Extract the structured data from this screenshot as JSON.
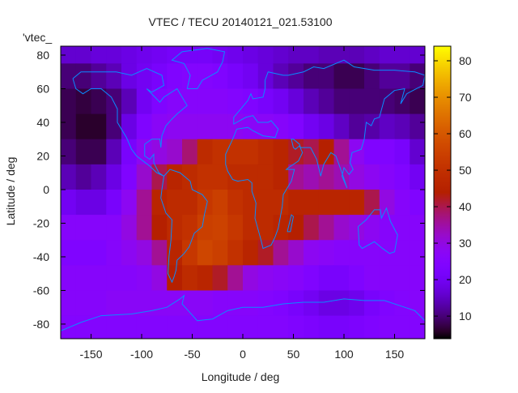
{
  "chart_data": {
    "type": "heatmap",
    "title": "VTEC / TECU 20140121_021.53100",
    "xlabel": "Longitude / deg",
    "ylabel": "Latitude / deg",
    "key_label": "'vtec_",
    "xlim": [
      -180,
      180
    ],
    "ylim": [
      -88.7,
      85.3
    ],
    "xticks": [
      -150,
      -100,
      -50,
      0,
      50,
      100,
      150
    ],
    "yticks": [
      -80,
      -60,
      -40,
      -20,
      0,
      20,
      40,
      60,
      80
    ],
    "colorbar": {
      "range": [
        3.8,
        84
      ],
      "ticks": [
        10,
        20,
        30,
        40,
        50,
        60,
        70,
        80
      ],
      "palette": "black-purple-red-orange-yellow"
    },
    "grid": false,
    "cell_size_deg": 15,
    "lon_centers": [
      -172.5,
      -157.5,
      -142.5,
      -127.5,
      -112.5,
      -97.5,
      -82.5,
      -67.5,
      -52.5,
      -37.5,
      -22.5,
      -7.5,
      7.5,
      22.5,
      37.5,
      52.5,
      67.5,
      82.5,
      97.5,
      112.5,
      127.5,
      142.5,
      157.5,
      172.5
    ],
    "lat_centers": [
      82.5,
      67.5,
      52.5,
      37.5,
      22.5,
      7.5,
      -7.5,
      -22.5,
      -37.5,
      -52.5,
      -67.5,
      -82.5
    ],
    "values": [
      [
        16,
        16,
        17,
        17,
        18,
        19,
        20,
        21,
        21,
        21,
        20,
        19,
        18,
        17,
        16,
        15,
        15,
        14,
        14,
        14,
        15,
        16,
        16,
        16
      ],
      [
        10,
        10,
        12,
        14,
        18,
        20,
        22,
        24,
        25,
        25,
        24,
        22,
        20,
        17,
        14,
        12,
        10,
        10,
        8,
        8,
        10,
        12,
        12,
        10
      ],
      [
        8,
        7,
        8,
        10,
        14,
        20,
        24,
        26,
        26,
        26,
        26,
        25,
        24,
        22,
        20,
        17,
        14,
        12,
        10,
        10,
        10,
        10,
        9,
        8
      ],
      [
        8,
        6,
        6,
        10,
        18,
        24,
        27,
        28,
        28,
        28,
        28,
        28,
        27,
        27,
        26,
        24,
        20,
        18,
        15,
        12,
        13,
        15,
        14,
        12
      ],
      [
        10,
        8,
        8,
        14,
        22,
        28,
        30,
        32,
        38,
        48,
        50,
        50,
        50,
        48,
        46,
        42,
        40,
        44,
        36,
        28,
        24,
        24,
        22,
        16
      ],
      [
        14,
        12,
        14,
        18,
        24,
        32,
        40,
        46,
        48,
        50,
        50,
        48,
        48,
        48,
        46,
        36,
        34,
        36,
        34,
        30,
        28,
        26,
        24,
        20
      ],
      [
        20,
        18,
        18,
        22,
        28,
        36,
        46,
        48,
        48,
        52,
        54,
        50,
        48,
        48,
        48,
        46,
        46,
        46,
        46,
        46,
        40,
        30,
        26,
        24
      ],
      [
        26,
        26,
        26,
        26,
        30,
        36,
        44,
        48,
        50,
        54,
        55,
        52,
        48,
        48,
        46,
        44,
        40,
        36,
        32,
        30,
        28,
        26,
        26,
        26
      ],
      [
        24,
        24,
        24,
        26,
        28,
        30,
        36,
        46,
        52,
        56,
        54,
        50,
        46,
        42,
        36,
        32,
        28,
        27,
        26,
        26,
        26,
        26,
        26,
        26
      ],
      [
        26,
        26,
        26,
        26,
        26,
        27,
        30,
        44,
        48,
        46,
        42,
        36,
        30,
        28,
        27,
        26,
        24,
        22,
        22,
        24,
        26,
        26,
        26,
        26
      ],
      [
        26,
        26,
        26,
        27,
        27,
        27,
        27,
        27,
        27,
        27,
        26,
        26,
        26,
        25,
        24,
        22,
        20,
        18,
        18,
        19,
        22,
        24,
        25,
        26
      ],
      [
        25,
        25,
        25,
        25,
        25,
        25,
        25,
        25,
        25,
        25,
        25,
        25,
        25,
        25,
        25,
        24,
        23,
        22,
        22,
        23,
        24,
        25,
        25,
        25
      ]
    ],
    "coastlines": [
      {
        "name": "north-america",
        "points": [
          [
            -168,
            66
          ],
          [
            -160,
            70
          ],
          [
            -140,
            70
          ],
          [
            -125,
            70
          ],
          [
            -110,
            68
          ],
          [
            -95,
            72
          ],
          [
            -80,
            68
          ],
          [
            -78,
            62
          ],
          [
            -90,
            58
          ],
          [
            -95,
            60
          ],
          [
            -82,
            52
          ],
          [
            -78,
            55
          ],
          [
            -65,
            60
          ],
          [
            -60,
            55
          ],
          [
            -55,
            50
          ],
          [
            -65,
            45
          ],
          [
            -70,
            42
          ],
          [
            -76,
            38
          ],
          [
            -80,
            32
          ],
          [
            -81,
            25
          ],
          [
            -82,
            30
          ],
          [
            -90,
            30
          ],
          [
            -97,
            27
          ],
          [
            -97,
            20
          ],
          [
            -92,
            18
          ],
          [
            -88,
            21
          ],
          [
            -88,
            16
          ],
          [
            -83,
            10
          ],
          [
            -78,
            8
          ],
          [
            -85,
            10
          ],
          [
            -92,
            14
          ],
          [
            -105,
            20
          ],
          [
            -110,
            24
          ],
          [
            -115,
            31
          ],
          [
            -118,
            34
          ],
          [
            -124,
            40
          ],
          [
            -124,
            48
          ],
          [
            -130,
            55
          ],
          [
            -140,
            60
          ],
          [
            -150,
            60
          ],
          [
            -158,
            57
          ],
          [
            -165,
            60
          ],
          [
            -168,
            66
          ]
        ]
      },
      {
        "name": "south-america",
        "points": [
          [
            -78,
            8
          ],
          [
            -72,
            12
          ],
          [
            -62,
            10
          ],
          [
            -52,
            5
          ],
          [
            -50,
            0
          ],
          [
            -40,
            -3
          ],
          [
            -35,
            -7
          ],
          [
            -38,
            -15
          ],
          [
            -40,
            -22
          ],
          [
            -48,
            -26
          ],
          [
            -53,
            -34
          ],
          [
            -58,
            -38
          ],
          [
            -65,
            -42
          ],
          [
            -66,
            -48
          ],
          [
            -68,
            -52
          ],
          [
            -70,
            -55
          ],
          [
            -74,
            -50
          ],
          [
            -73,
            -40
          ],
          [
            -71,
            -30
          ],
          [
            -70,
            -18
          ],
          [
            -76,
            -14
          ],
          [
            -81,
            -5
          ],
          [
            -80,
            0
          ],
          [
            -78,
            8
          ]
        ]
      },
      {
        "name": "greenland",
        "points": [
          [
            -55,
            60
          ],
          [
            -45,
            60
          ],
          [
            -40,
            65
          ],
          [
            -25,
            70
          ],
          [
            -20,
            76
          ],
          [
            -18,
            82
          ],
          [
            -35,
            84
          ],
          [
            -60,
            82
          ],
          [
            -70,
            77
          ],
          [
            -58,
            75
          ],
          [
            -52,
            68
          ],
          [
            -55,
            60
          ]
        ]
      },
      {
        "name": "africa-eurasia",
        "points": [
          [
            -17,
            15
          ],
          [
            -17,
            21
          ],
          [
            -10,
            30
          ],
          [
            -6,
            36
          ],
          [
            5,
            37
          ],
          [
            10,
            35
          ],
          [
            20,
            32
          ],
          [
            32,
            31
          ],
          [
            35,
            36
          ],
          [
            28,
            41
          ],
          [
            25,
            40
          ],
          [
            15,
            40
          ],
          [
            10,
            44
          ],
          [
            3,
            43
          ],
          [
            -9,
            39
          ],
          [
            -9,
            43
          ],
          [
            -2,
            48
          ],
          [
            5,
            53
          ],
          [
            8,
            57
          ],
          [
            10,
            54
          ],
          [
            20,
            55
          ],
          [
            22,
            60
          ],
          [
            22,
            65
          ],
          [
            25,
            70
          ],
          [
            40,
            68
          ],
          [
            45,
            68
          ],
          [
            60,
            70
          ],
          [
            70,
            73
          ],
          [
            80,
            72
          ],
          [
            100,
            77
          ],
          [
            110,
            73
          ],
          [
            130,
            71
          ],
          [
            150,
            71
          ],
          [
            170,
            70
          ],
          [
            180,
            68
          ],
          [
            178,
            62
          ],
          [
            162,
            57
          ],
          [
            156,
            51
          ],
          [
            160,
            60
          ],
          [
            150,
            59
          ],
          [
            140,
            54
          ],
          [
            135,
            43
          ],
          [
            130,
            42
          ],
          [
            127,
            38
          ],
          [
            122,
            40
          ],
          [
            120,
            30
          ],
          [
            117,
            24
          ],
          [
            108,
            22
          ],
          [
            106,
            16
          ],
          [
            109,
            12
          ],
          [
            105,
            9
          ],
          [
            100,
            13
          ],
          [
            98,
            8
          ],
          [
            103,
            1
          ],
          [
            98,
            10
          ],
          [
            92,
            20
          ],
          [
            87,
            22
          ],
          [
            80,
            15
          ],
          [
            77,
            8
          ],
          [
            73,
            18
          ],
          [
            67,
            25
          ],
          [
            57,
            25
          ],
          [
            56,
            27
          ],
          [
            50,
            30
          ],
          [
            48,
            30
          ],
          [
            50,
            25
          ],
          [
            52,
            24
          ],
          [
            56,
            26
          ],
          [
            59,
            22
          ],
          [
            55,
            17
          ],
          [
            45,
            13
          ],
          [
            43,
            12
          ],
          [
            51,
            12
          ],
          [
            48,
            5
          ],
          [
            40,
            -3
          ],
          [
            39,
            -10
          ],
          [
            35,
            -23
          ],
          [
            32,
            -28
          ],
          [
            28,
            -33
          ],
          [
            20,
            -35
          ],
          [
            18,
            -30
          ],
          [
            12,
            -17
          ],
          [
            13,
            -8
          ],
          [
            9,
            -1
          ],
          [
            9,
            4
          ],
          [
            5,
            6
          ],
          [
            -5,
            5
          ],
          [
            -10,
            6
          ],
          [
            -15,
            11
          ],
          [
            -17,
            15
          ]
        ]
      },
      {
        "name": "madagascar",
        "points": [
          [
            44,
            -25
          ],
          [
            48,
            -15
          ],
          [
            50,
            -16
          ],
          [
            47,
            -25
          ],
          [
            44,
            -25
          ]
        ]
      },
      {
        "name": "australia",
        "points": [
          [
            114,
            -22
          ],
          [
            122,
            -18
          ],
          [
            130,
            -12
          ],
          [
            136,
            -12
          ],
          [
            137,
            -17
          ],
          [
            142,
            -11
          ],
          [
            146,
            -19
          ],
          [
            153,
            -27
          ],
          [
            150,
            -37
          ],
          [
            145,
            -38
          ],
          [
            138,
            -35
          ],
          [
            130,
            -31
          ],
          [
            118,
            -35
          ],
          [
            115,
            -33
          ],
          [
            114,
            -22
          ]
        ]
      },
      {
        "name": "antarctica",
        "points": [
          [
            -180,
            -84
          ],
          [
            -160,
            -79
          ],
          [
            -140,
            -75
          ],
          [
            -110,
            -74
          ],
          [
            -90,
            -72
          ],
          [
            -75,
            -70
          ],
          [
            -62,
            -65
          ],
          [
            -58,
            -63
          ],
          [
            -60,
            -68
          ],
          [
            -45,
            -78
          ],
          [
            -30,
            -77
          ],
          [
            -15,
            -72
          ],
          [
            0,
            -70
          ],
          [
            20,
            -70
          ],
          [
            40,
            -68
          ],
          [
            60,
            -67
          ],
          [
            80,
            -67
          ],
          [
            100,
            -65
          ],
          [
            120,
            -66
          ],
          [
            140,
            -66
          ],
          [
            160,
            -70
          ],
          [
            170,
            -72
          ],
          [
            180,
            -78
          ]
        ]
      }
    ]
  }
}
